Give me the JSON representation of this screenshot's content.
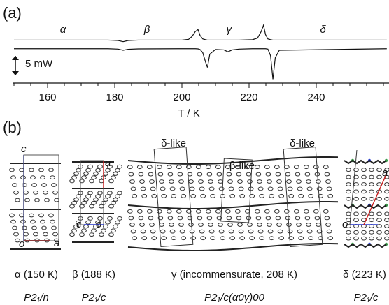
{
  "chart_data": {
    "type": "line",
    "panel_label": "(a)",
    "x_label": "T / K",
    "x": [
      150,
      178,
      181,
      182.5,
      184,
      187,
      200,
      202,
      203,
      204,
      204.8,
      205.4,
      206.2,
      207,
      207.6,
      208.3,
      210,
      212.5,
      213.7,
      215,
      217,
      221,
      222.5,
      223.6,
      224.3,
      224.9,
      225.6,
      226.4,
      227.1,
      227.8,
      229,
      261
    ],
    "series": [
      {
        "color": "#111111",
        "values": [
          0,
          0,
          -0.1,
          -0.4,
          -0.1,
          0,
          0,
          0.2,
          0.9,
          2.2,
          2.7,
          1.2,
          0.3,
          0.1,
          0,
          0,
          0,
          0,
          0,
          0,
          0,
          0.1,
          0.5,
          2.2,
          3.8,
          1.4,
          0.3,
          0.1,
          0,
          0,
          0,
          0
        ]
      },
      {
        "color": "#111111",
        "values": [
          -2.2,
          -2.2,
          -2.3,
          -2.6,
          -2.35,
          -2.25,
          -2.2,
          -2.2,
          -2.2,
          -2.2,
          -2.25,
          -2.4,
          -3.2,
          -5.5,
          -7.0,
          -3.6,
          -2.4,
          -2.5,
          -3.0,
          -2.5,
          -2.3,
          -2.2,
          -2.2,
          -2.2,
          -2.2,
          -2.2,
          -2.3,
          -4.0,
          -10.0,
          -4.5,
          -2.6,
          -2.2
        ]
      }
    ],
    "xlim": [
      150,
      261
    ],
    "ylim": [
      -11,
      4.9
    ],
    "xticks": [
      160,
      180,
      200,
      220,
      240
    ],
    "minor_xticks": [
      150,
      155,
      165,
      170,
      175,
      185,
      190,
      195,
      205,
      210,
      215,
      225,
      230,
      235,
      245,
      250,
      255,
      260
    ],
    "annotations": [
      {
        "text": "α",
        "x": 164.6
      },
      {
        "text": "β",
        "x": 189.6
      },
      {
        "text": "γ",
        "x": 214
      },
      {
        "text": "δ",
        "x": 242
      }
    ],
    "scale_bar": {
      "label": "5 mW",
      "value": 5
    }
  },
  "panel_b": {
    "label": "(b)",
    "structures": [
      {
        "caption": "α (150 K)",
        "space_group": "P2₁/n",
        "axis_labels": [
          "c",
          "o",
          "a"
        ]
      },
      {
        "caption": "β (188 K)",
        "space_group": "P2₁/c",
        "axis_labels": [
          "a",
          "c",
          "o"
        ]
      },
      {
        "caption": "γ (incommensurate, 208 K)",
        "space_group": "P2₁/c(α0γ)00",
        "overlays": [
          "δ-like",
          "β-like",
          "δ-like"
        ]
      },
      {
        "caption": "δ (223 K)",
        "space_group": "P2₁/c",
        "axis_labels": [
          "a",
          "o"
        ]
      }
    ]
  }
}
